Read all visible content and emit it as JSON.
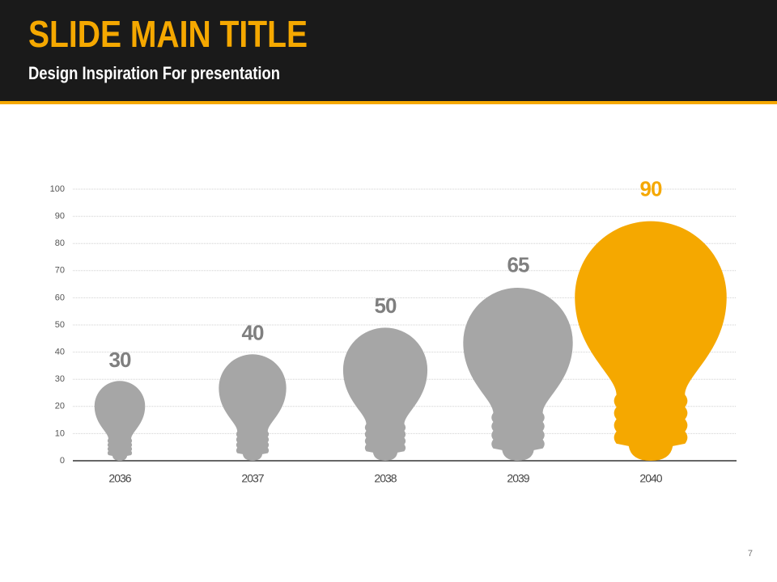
{
  "slide": {
    "title": "SLIDE MAIN TITLE",
    "subtitle": "Design Inspiration For presentation",
    "page_number": 7
  },
  "chart_data": {
    "type": "bulb",
    "categories": [
      "2036",
      "2037",
      "2038",
      "2039",
      "2040"
    ],
    "values": [
      30,
      40,
      50,
      65,
      90
    ],
    "colors": [
      "#a6a6a6",
      "#a6a6a6",
      "#a6a6a6",
      "#a6a6a6",
      "#f5a800"
    ],
    "ylim": [
      0,
      100
    ],
    "yticks": [
      0,
      10,
      20,
      30,
      40,
      50,
      60,
      70,
      80,
      90,
      100
    ],
    "grid": true
  }
}
